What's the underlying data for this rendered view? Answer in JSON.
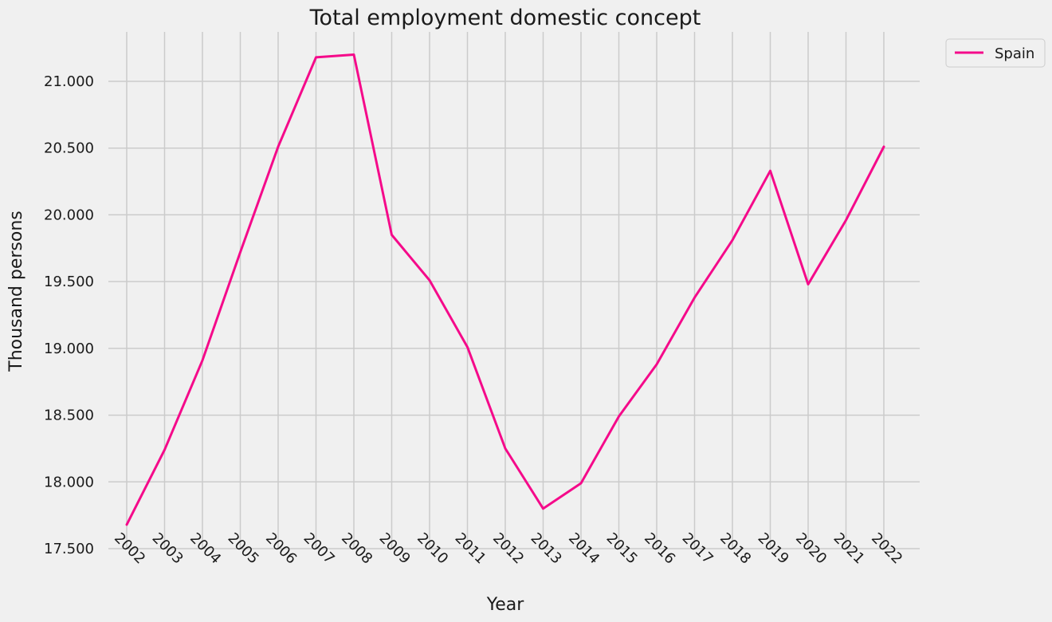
{
  "chart_data": {
    "type": "line",
    "title": "Total employment domestic concept",
    "xlabel": "Year",
    "ylabel": "Thousand persons",
    "categories": [
      "2002",
      "2003",
      "2004",
      "2005",
      "2006",
      "2007",
      "2008",
      "2009",
      "2010",
      "2011",
      "2012",
      "2013",
      "2014",
      "2015",
      "2016",
      "2017",
      "2018",
      "2019",
      "2020",
      "2021",
      "2022"
    ],
    "series": [
      {
        "name": "Spain",
        "color": "#f50a8a",
        "values": [
          17680,
          18240,
          18910,
          19720,
          20510,
          21180,
          21200,
          19850,
          19510,
          19010,
          18250,
          17800,
          17990,
          18490,
          18880,
          19380,
          19810,
          20330,
          19480,
          19960,
          20510
        ]
      }
    ],
    "ylim": [
      17500,
      21250
    ],
    "yticks": [
      17500,
      18000,
      18500,
      19000,
      19500,
      20000,
      20500,
      21000
    ],
    "ytick_labels": [
      "17.500",
      "18.000",
      "18.500",
      "19.000",
      "19.500",
      "20.000",
      "20.500",
      "21.000"
    ],
    "grid": true,
    "legend_position": "top-right, outside plot"
  }
}
